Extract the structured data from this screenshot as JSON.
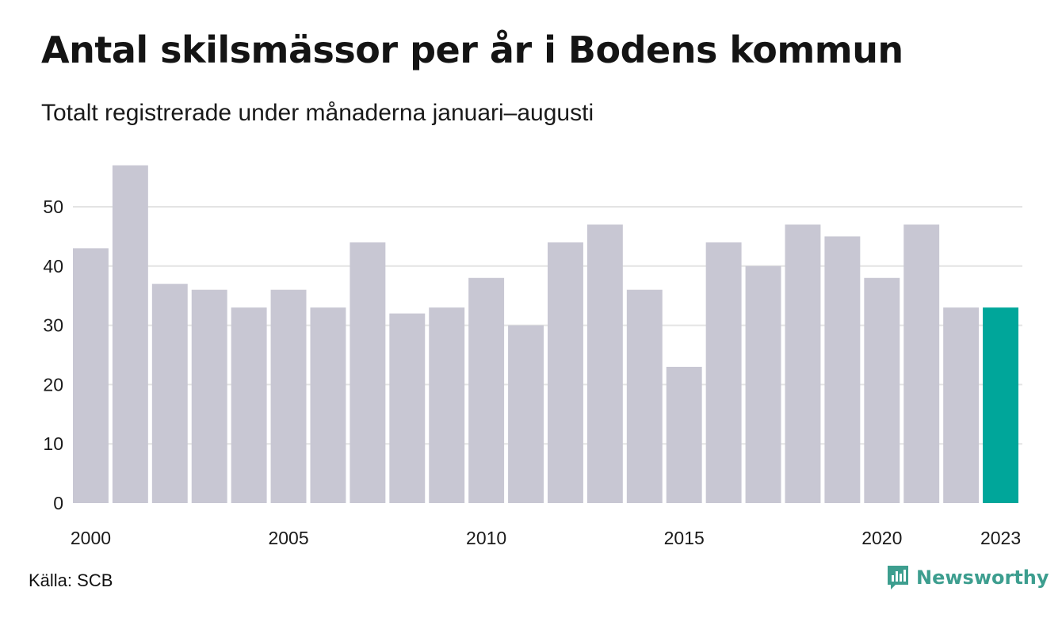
{
  "title": "Antal skilsmässor per år i Bodens kommun",
  "subtitle": "Totalt registrerade under månaderna januari–augusti",
  "source": "Källa: SCB",
  "brand": "Newsworthy",
  "colors": {
    "bar": "#c8c7d3",
    "highlight": "#00a69a",
    "grid": "#e4e4e4",
    "brand": "#3d9e8f"
  },
  "chart_data": {
    "type": "bar",
    "x": [
      2000,
      2001,
      2002,
      2003,
      2004,
      2005,
      2006,
      2007,
      2008,
      2009,
      2010,
      2011,
      2012,
      2013,
      2014,
      2015,
      2016,
      2017,
      2018,
      2019,
      2020,
      2021,
      2022,
      2023
    ],
    "values": [
      43,
      57,
      37,
      36,
      33,
      36,
      33,
      44,
      32,
      33,
      38,
      30,
      44,
      47,
      36,
      23,
      44,
      40,
      47,
      45,
      38,
      47,
      33,
      33
    ],
    "highlight_x": 2023,
    "xticks": [
      2000,
      2005,
      2010,
      2015,
      2020,
      2023
    ],
    "yticks": [
      0,
      10,
      20,
      30,
      40,
      50
    ],
    "ylim": [
      0,
      57
    ],
    "grid": true
  }
}
